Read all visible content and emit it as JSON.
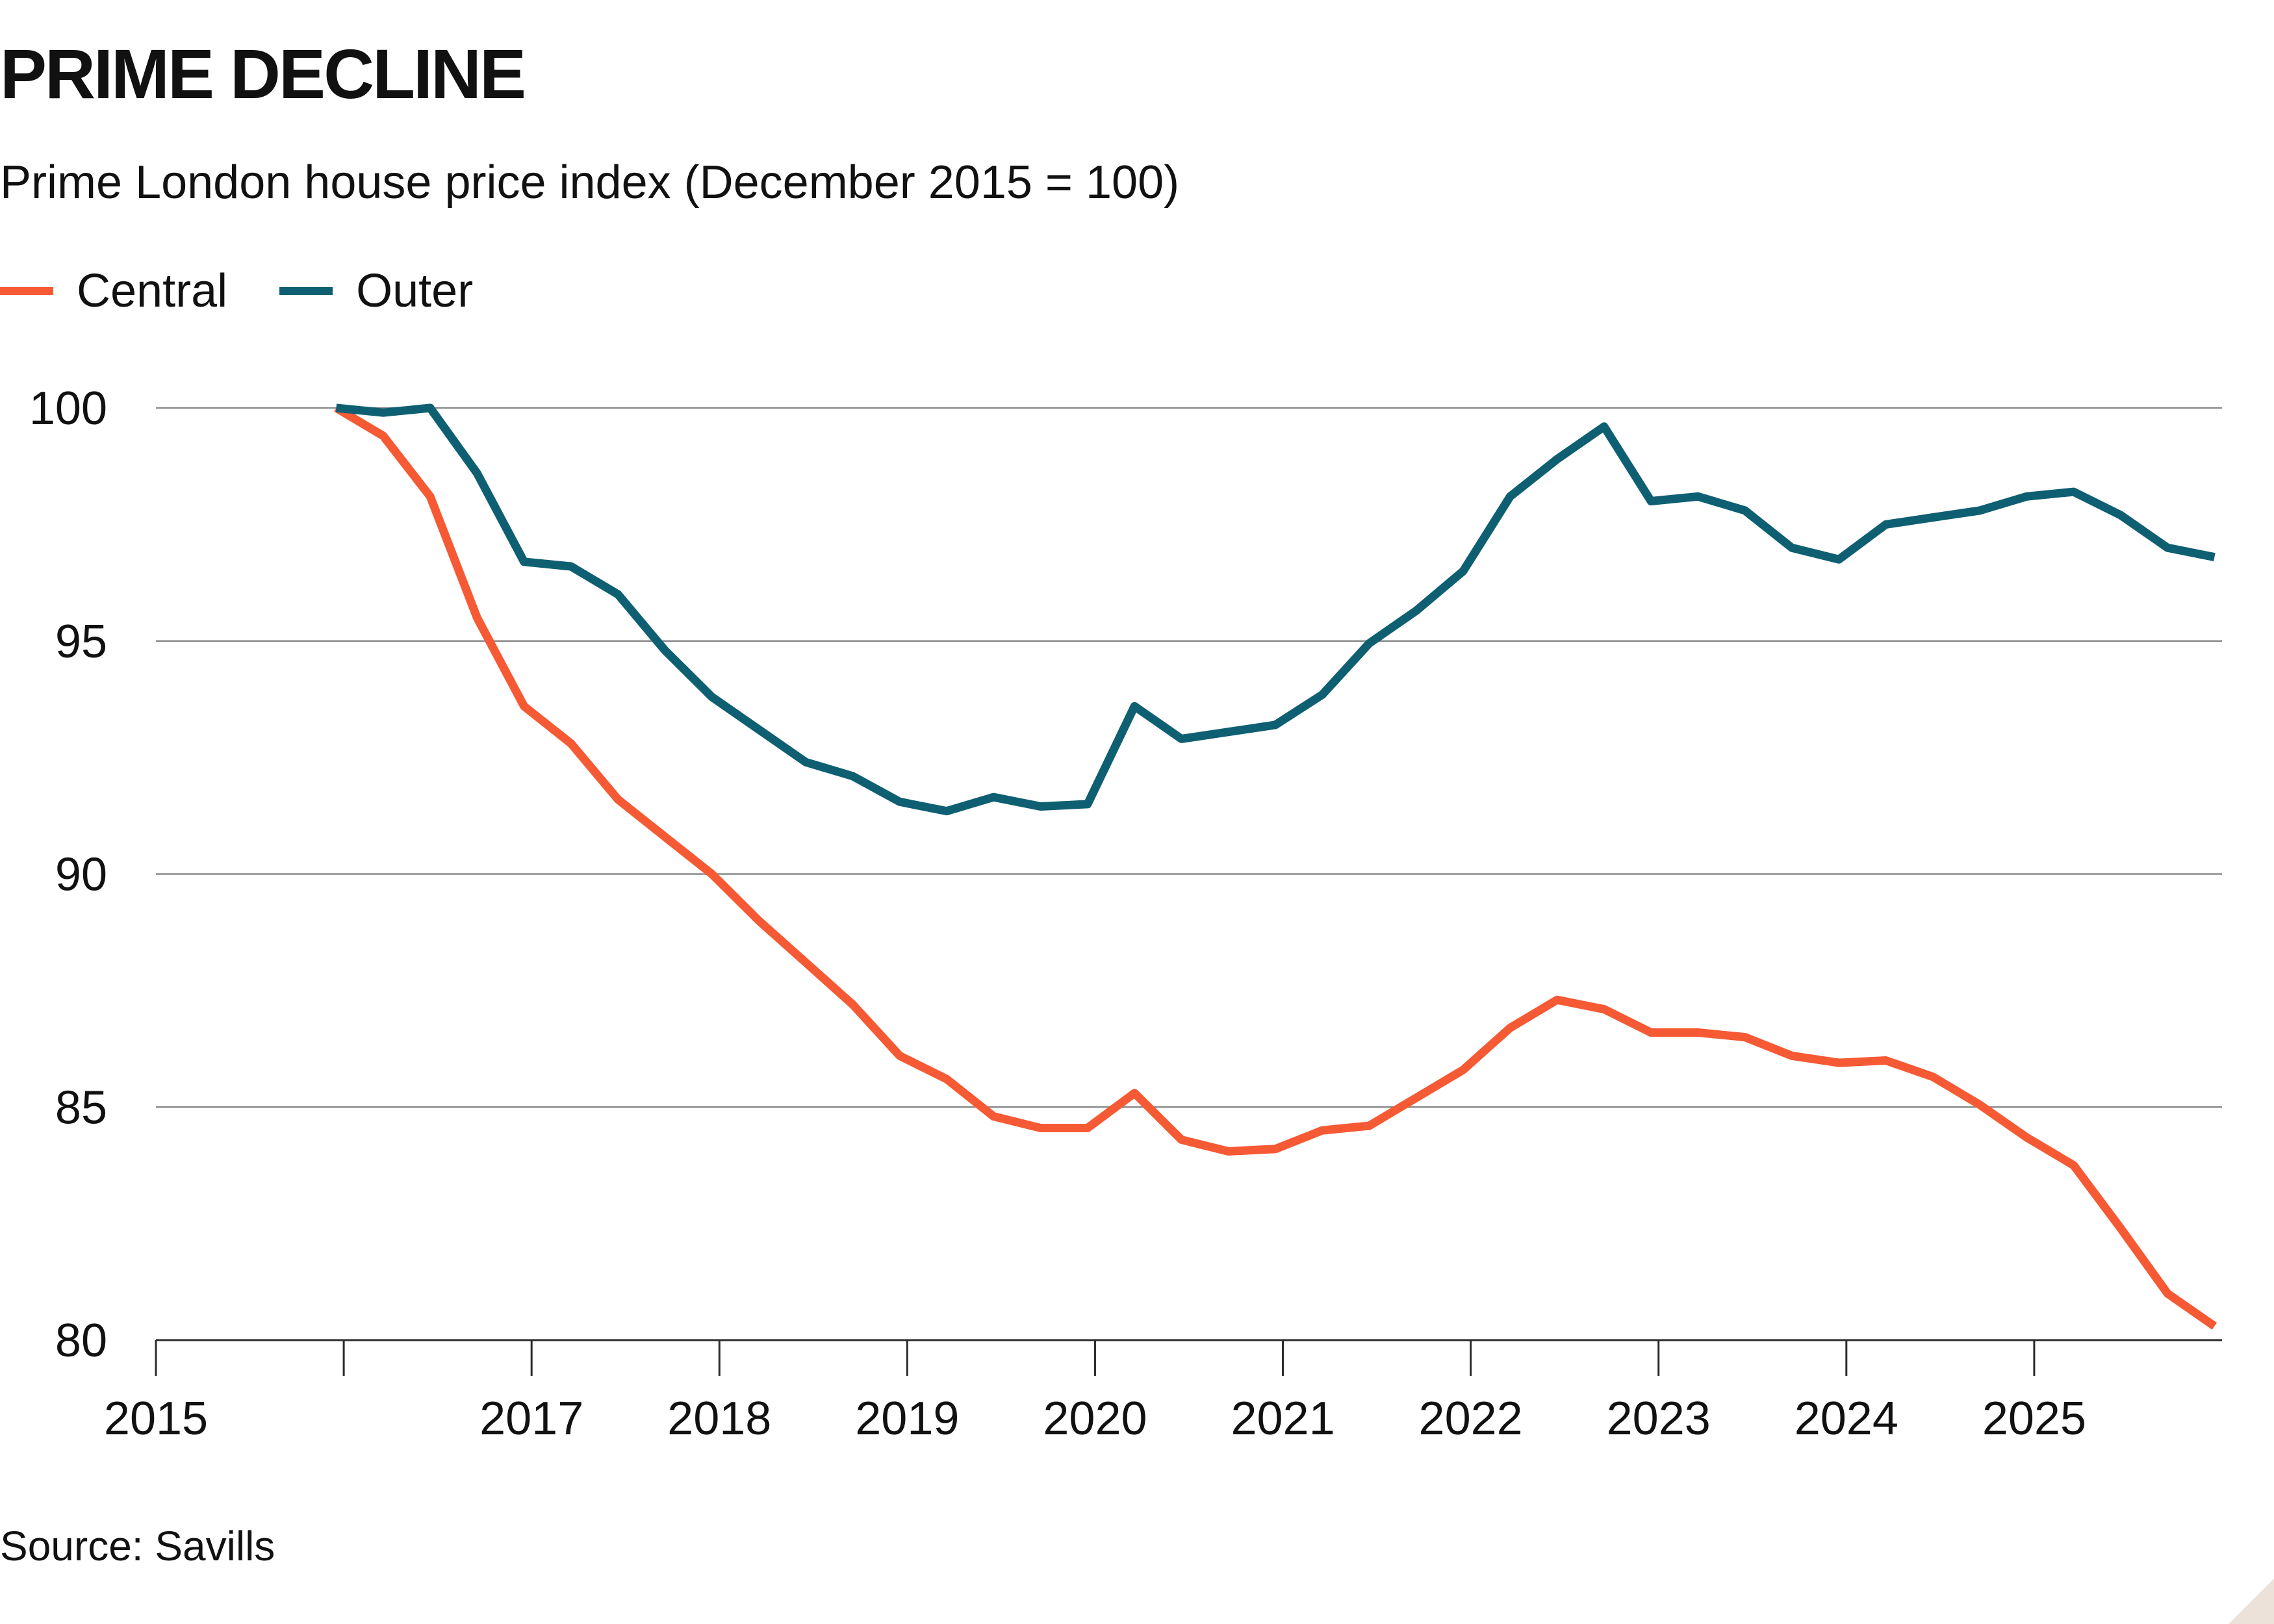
{
  "header": {
    "title": "PRIME DECLINE",
    "subtitle": "Prime London house price index (December 2015 = 100)"
  },
  "legend": {
    "items": [
      {
        "label": "Central",
        "color": "#f55a35"
      },
      {
        "label": "Outer",
        "color": "#0f5f72"
      }
    ]
  },
  "footer": {
    "source": "Source: Savills"
  },
  "colors": {
    "central": "#f55a35",
    "outer": "#0f5f72",
    "gridline": "#8c8c8c",
    "axis": "#2b2b2b",
    "text": "#111111"
  },
  "chart_data": {
    "type": "line",
    "x": [
      2015.96,
      2016.21,
      2016.46,
      2016.71,
      2016.96,
      2017.21,
      2017.46,
      2017.71,
      2017.96,
      2018.21,
      2018.46,
      2018.71,
      2018.96,
      2019.21,
      2019.46,
      2019.71,
      2019.96,
      2020.21,
      2020.46,
      2020.71,
      2020.96,
      2021.21,
      2021.46,
      2021.71,
      2021.96,
      2022.21,
      2022.46,
      2022.71,
      2022.96,
      2023.21,
      2023.46,
      2023.71,
      2023.96,
      2024.21,
      2024.46,
      2024.71,
      2024.96,
      2025.21,
      2025.46,
      2025.71,
      2025.96
    ],
    "series": [
      {
        "name": "Central",
        "color": "#f55a35",
        "values": [
          100.0,
          99.4,
          98.1,
          95.5,
          93.6,
          92.8,
          91.6,
          90.8,
          90.0,
          89.0,
          88.1,
          87.2,
          86.1,
          85.6,
          84.8,
          84.55,
          84.55,
          85.3,
          84.3,
          84.05,
          84.1,
          84.5,
          84.6,
          85.2,
          85.8,
          86.7,
          87.3,
          87.1,
          86.6,
          86.6,
          86.5,
          86.1,
          85.95,
          86.0,
          85.65,
          85.05,
          84.35,
          83.75,
          82.4,
          81.0,
          80.3
        ]
      },
      {
        "name": "Outer",
        "color": "#0f5f72",
        "values": [
          100.0,
          99.9,
          100.0,
          98.6,
          96.7,
          96.6,
          96.0,
          94.8,
          93.8,
          93.1,
          92.4,
          92.1,
          91.55,
          91.35,
          91.65,
          91.45,
          91.5,
          93.6,
          92.9,
          93.05,
          93.2,
          93.85,
          94.95,
          95.65,
          96.5,
          98.1,
          98.9,
          99.6,
          98.0,
          98.1,
          97.8,
          97.0,
          96.75,
          97.5,
          97.65,
          97.8,
          98.1,
          98.2,
          97.7,
          97.0,
          96.8
        ]
      }
    ],
    "xlabel": "",
    "ylabel": "",
    "ylim": [
      80,
      100
    ],
    "y_ticks": [
      100,
      95,
      90,
      85,
      80
    ],
    "x_ticks": [
      2015,
      2017,
      2018,
      2019,
      2020,
      2021,
      2022,
      2023,
      2024,
      2025
    ],
    "x_tick_marks": [
      2015,
      2016,
      2017,
      2018,
      2019,
      2020,
      2021,
      2022,
      2023,
      2024,
      2025
    ],
    "grid": "horizontal",
    "legend_position": "top-left"
  }
}
